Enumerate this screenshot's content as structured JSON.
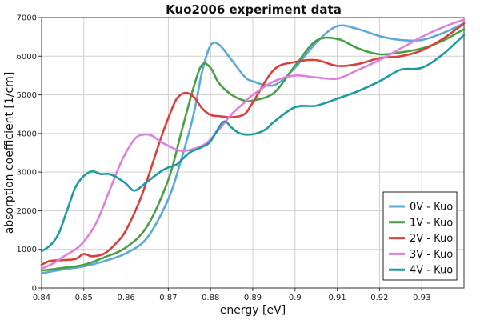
{
  "chart_data": {
    "type": "line",
    "title": "Kuo2006 experiment data",
    "xlabel": "energy [eV]",
    "ylabel": "absorption coefficient [1/cm]",
    "xlim": [
      0.84,
      0.94
    ],
    "ylim": [
      0,
      7000
    ],
    "xticks": [
      "0.84",
      "0.85",
      "0.86",
      "0.87",
      "0.88",
      "0.89",
      "0.9",
      "0.91",
      "0.92",
      "0.93"
    ],
    "yticks": [
      "0",
      "1000",
      "2000",
      "3000",
      "4000",
      "5000",
      "6000",
      "7000"
    ],
    "grid": true,
    "legend_position": "bottom-right",
    "series": [
      {
        "name": "0V - Kuo",
        "color": "#5aa9db",
        "x": [
          0.84,
          0.845,
          0.85,
          0.855,
          0.86,
          0.865,
          0.87,
          0.873,
          0.876,
          0.878,
          0.88,
          0.882,
          0.885,
          0.888,
          0.89,
          0.895,
          0.9,
          0.905,
          0.91,
          0.915,
          0.92,
          0.925,
          0.93,
          0.935,
          0.94
        ],
        "y": [
          380,
          480,
          560,
          700,
          900,
          1300,
          2300,
          3300,
          4500,
          5600,
          6280,
          6300,
          5900,
          5480,
          5350,
          5250,
          5700,
          6350,
          6780,
          6700,
          6520,
          6420,
          6420,
          6600,
          6850
        ]
      },
      {
        "name": "1V - Kuo",
        "color": "#4a9e44",
        "x": [
          0.84,
          0.845,
          0.85,
          0.855,
          0.86,
          0.865,
          0.87,
          0.873,
          0.876,
          0.878,
          0.88,
          0.882,
          0.885,
          0.888,
          0.89,
          0.895,
          0.9,
          0.905,
          0.91,
          0.915,
          0.92,
          0.925,
          0.93,
          0.935,
          0.94
        ],
        "y": [
          450,
          520,
          600,
          800,
          1050,
          1600,
          2800,
          4000,
          5200,
          5780,
          5700,
          5300,
          5000,
          4850,
          4850,
          5050,
          5750,
          6400,
          6450,
          6200,
          6050,
          6100,
          6200,
          6400,
          6700
        ]
      },
      {
        "name": "2V - Kuo",
        "color": "#d93f3a",
        "x": [
          0.84,
          0.842,
          0.845,
          0.848,
          0.85,
          0.852,
          0.855,
          0.858,
          0.86,
          0.863,
          0.865,
          0.868,
          0.87,
          0.872,
          0.874,
          0.876,
          0.878,
          0.88,
          0.882,
          0.885,
          0.888,
          0.89,
          0.895,
          0.9,
          0.905,
          0.91,
          0.915,
          0.92,
          0.925,
          0.93,
          0.935,
          0.94
        ],
        "y": [
          600,
          700,
          720,
          750,
          880,
          820,
          900,
          1200,
          1500,
          2200,
          2800,
          3800,
          4400,
          4900,
          5050,
          4950,
          4650,
          4480,
          4450,
          4420,
          4500,
          4800,
          5650,
          5850,
          5900,
          5750,
          5800,
          5950,
          6000,
          6150,
          6450,
          6850
        ]
      },
      {
        "name": "3V - Kuo",
        "color": "#e07ee0",
        "x": [
          0.84,
          0.843,
          0.845,
          0.848,
          0.85,
          0.853,
          0.856,
          0.859,
          0.862,
          0.864,
          0.866,
          0.868,
          0.87,
          0.873,
          0.876,
          0.879,
          0.882,
          0.885,
          0.888,
          0.89,
          0.895,
          0.9,
          0.905,
          0.91,
          0.915,
          0.92,
          0.925,
          0.93,
          0.935,
          0.94
        ],
        "y": [
          500,
          650,
          800,
          1000,
          1200,
          1700,
          2500,
          3300,
          3850,
          3970,
          3950,
          3800,
          3680,
          3550,
          3600,
          3750,
          4100,
          4500,
          4800,
          5000,
          5350,
          5500,
          5450,
          5420,
          5650,
          5900,
          6200,
          6500,
          6750,
          6950
        ]
      },
      {
        "name": "4V - Kuo",
        "color": "#1c9aa6",
        "x": [
          0.84,
          0.842,
          0.844,
          0.846,
          0.848,
          0.85,
          0.852,
          0.854,
          0.856,
          0.858,
          0.86,
          0.862,
          0.865,
          0.868,
          0.87,
          0.872,
          0.875,
          0.878,
          0.88,
          0.883,
          0.885,
          0.887,
          0.89,
          0.893,
          0.895,
          0.9,
          0.905,
          0.91,
          0.915,
          0.92,
          0.925,
          0.93,
          0.935,
          0.94
        ],
        "y": [
          950,
          1100,
          1400,
          2000,
          2600,
          2900,
          3020,
          2950,
          2950,
          2850,
          2700,
          2520,
          2750,
          3000,
          3120,
          3200,
          3500,
          3650,
          3800,
          4300,
          4150,
          4000,
          3980,
          4100,
          4300,
          4680,
          4720,
          4900,
          5100,
          5350,
          5650,
          5700,
          6050,
          6550
        ]
      }
    ]
  }
}
